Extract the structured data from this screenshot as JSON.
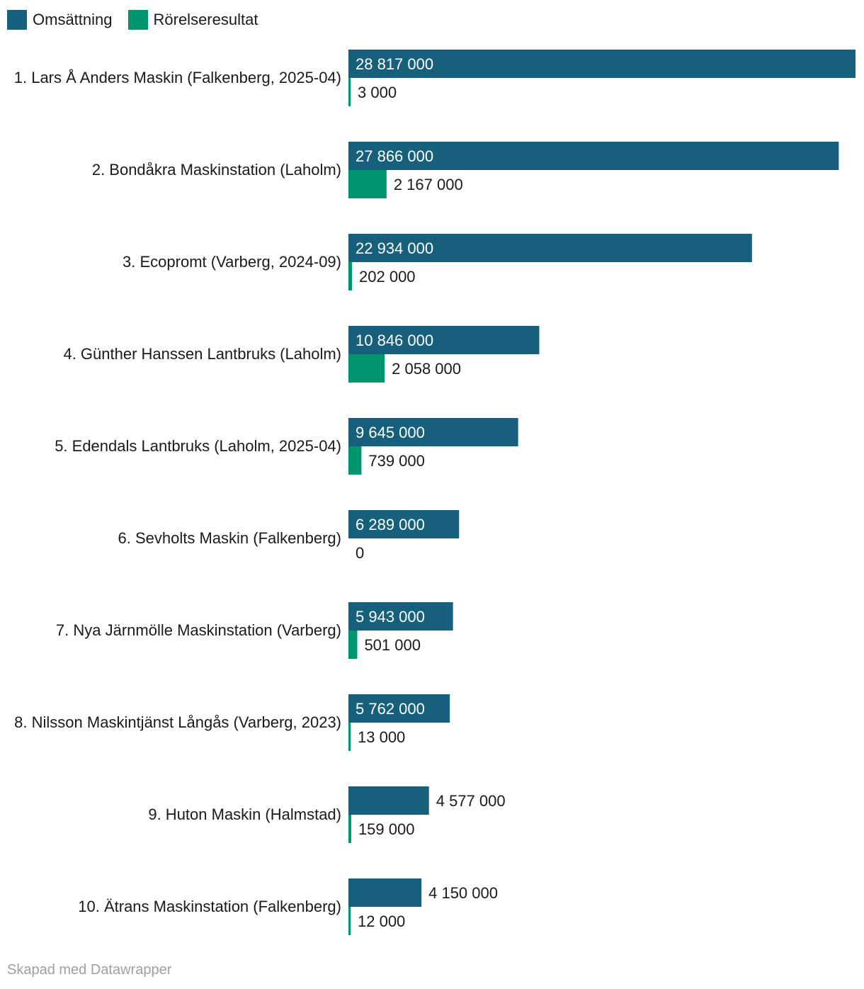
{
  "colors": {
    "revenue": "#17607c",
    "operating_result": "#00946f",
    "label_on_bar": "#ffffff",
    "label_off_bar": "#1a1a1a"
  },
  "legend": [
    {
      "label": "Omsättning",
      "color": "#17607c"
    },
    {
      "label": "Rörelseresultat",
      "color": "#00946f"
    }
  ],
  "footer": "Skapad med Datawrapper",
  "chart_data": {
    "type": "bar",
    "orientation": "horizontal",
    "grouped": true,
    "categories": [
      "1. Lars Å Anders Maskin (Falkenberg, 2025-04)",
      "2. Bondåkra Maskinstation (Laholm)",
      "3. Ecopromt (Varberg, 2024-09)",
      "4. Günther Hanssen Lantbruks (Laholm)",
      "5. Edendals Lantbruks (Laholm, 2025-04)",
      "6. Sevholts Maskin (Falkenberg)",
      "7. Nya Järnmölle Maskinstation (Varberg)",
      "8. Nilsson Maskintjänst Långås (Varberg, 2023)",
      "9. Huton Maskin (Halmstad)",
      "10. Ätrans Maskinstation (Falkenberg)"
    ],
    "series": [
      {
        "name": "Omsättning",
        "values": [
          28817000,
          27866000,
          22934000,
          10846000,
          9645000,
          6289000,
          5943000,
          5762000,
          4577000,
          4150000
        ],
        "labels": [
          "28 817 000",
          "27 866 000",
          "22 934 000",
          "10 846 000",
          "9 645 000",
          "6 289 000",
          "5 943 000",
          "5 762 000",
          "4 577 000",
          "4 150 000"
        ]
      },
      {
        "name": "Rörelseresultat",
        "values": [
          3000,
          2167000,
          202000,
          2058000,
          739000,
          0,
          501000,
          13000,
          159000,
          12000
        ],
        "labels": [
          "3 000",
          "2 167 000",
          "202 000",
          "2 058 000",
          "739 000",
          "0",
          "501 000",
          "13 000",
          "159 000",
          "12 000"
        ]
      }
    ],
    "xlim": [
      0,
      28817000
    ],
    "grid": false,
    "legend_position": "top-left"
  }
}
